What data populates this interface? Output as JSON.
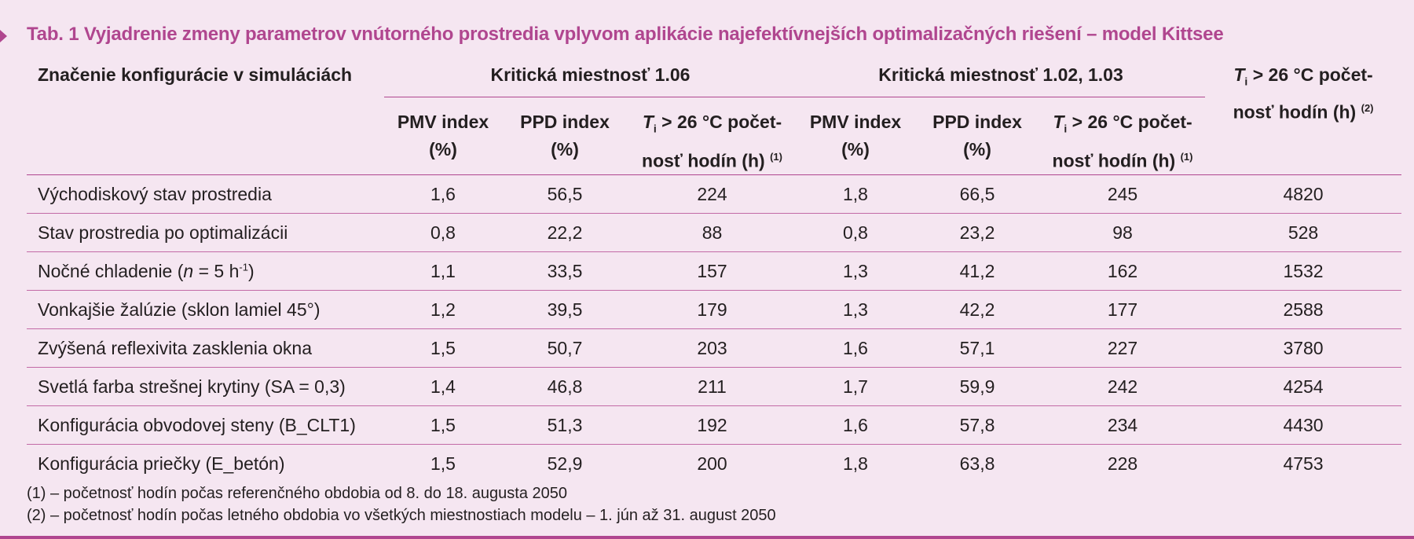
{
  "title": "Tab. 1 Vyjadrenie zmeny parametrov vnútorného prostredia vplyvom aplikácie najefektívnejších optimalizačných riešení – model Kittsee",
  "header": {
    "config_label": "Značenie konfigurácie v simuláciách",
    "group1": "Kritická miestnosť 1.06",
    "group2": "Kritická miestnosť 1.02, 1.03",
    "pmv": "PMV index",
    "pmv_unit": "(%)",
    "ppd": "PPD index",
    "ppd_unit": "(%)",
    "ti_var": "T",
    "ti_sub": "i",
    "ti_text_line1": " > 26 °C počet-",
    "ti_text_line2": "nosť hodín (h) ",
    "note1_ref": "(1)",
    "note2_ref": "(2)"
  },
  "rows": [
    {
      "label": "Východiskový stav prostredia",
      "values": [
        "1,6",
        "56,5",
        "224",
        "1,8",
        "66,5",
        "245",
        "4820"
      ]
    },
    {
      "label": "Stav prostredia po optimalizácii",
      "values": [
        "0,8",
        "22,2",
        "88",
        "0,8",
        "23,2",
        "98",
        "528"
      ]
    },
    {
      "label_pre": "Nočné chladenie (",
      "label_var": "n",
      "label_mid": " = 5 h",
      "label_sup": "-1",
      "label_post": ")",
      "values": [
        "1,1",
        "33,5",
        "157",
        "1,3",
        "41,2",
        "162",
        "1532"
      ]
    },
    {
      "label": "Vonkajšie žalúzie (sklon lamiel 45°)",
      "values": [
        "1,2",
        "39,5",
        "179",
        "1,3",
        "42,2",
        "177",
        "2588"
      ]
    },
    {
      "label": "Zvýšená reflexivita zasklenia okna",
      "values": [
        "1,5",
        "50,7",
        "203",
        "1,6",
        "57,1",
        "227",
        "3780"
      ]
    },
    {
      "label": "Svetlá farba strešnej krytiny (SA = 0,3)",
      "values": [
        "1,4",
        "46,8",
        "211",
        "1,7",
        "59,9",
        "242",
        "4254"
      ]
    },
    {
      "label": "Konfigurácia obvodovej steny (B_CLT1)",
      "values": [
        "1,5",
        "51,3",
        "192",
        "1,6",
        "57,8",
        "234",
        "4430"
      ]
    },
    {
      "label": "Konfigurácia priečky (E_betón)",
      "values": [
        "1,5",
        "52,9",
        "200",
        "1,8",
        "63,8",
        "228",
        "4753"
      ]
    }
  ],
  "notes": [
    "(1) – početnosť hodín počas referenčného obdobia od 8. do 18. augusta 2050",
    "(2) – početnosť hodín počas letného obdobia vo všetkých miestnostiach modelu – 1. jún až 31. august 2050"
  ],
  "colors": {
    "accent": "#b0468f",
    "background": "#f5e6f1",
    "text": "#231f20"
  }
}
